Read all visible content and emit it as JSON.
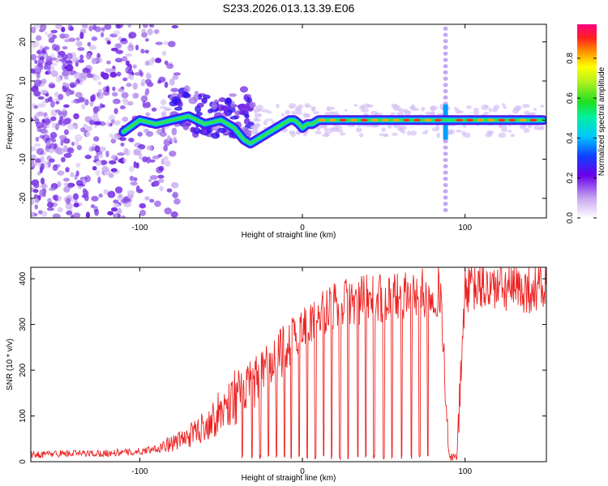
{
  "title": "S233.2026.013.13.39.E06",
  "chart_data": [
    {
      "type": "heatmap",
      "title": "S233.2026.013.13.39.E06",
      "xlabel": "Height of straight line (km)",
      "ylabel": "Frequency (Hz)",
      "xlim": [
        -167,
        150
      ],
      "ylim": [
        -25,
        24.5
      ],
      "xticks": [
        -100,
        0,
        100
      ],
      "xtick_labels": [
        "-100",
        "0",
        "100"
      ],
      "yticks": [
        20,
        10,
        0,
        -10,
        -20
      ],
      "ytick_labels": [
        "20",
        "10",
        "0",
        "-10",
        "-20"
      ],
      "trace": {
        "x": [
          -110,
          -100,
          -90,
          -80,
          -70,
          -60,
          -50,
          -42,
          -36,
          -32,
          -28,
          -24,
          -20,
          -16,
          -12,
          -8,
          -5,
          -2,
          0,
          3,
          6,
          10,
          20,
          40,
          60,
          80,
          90,
          95,
          100,
          120,
          148
        ],
        "y": [
          -3,
          0,
          -1,
          0,
          1,
          -1,
          0,
          -2,
          -5,
          -6,
          -5,
          -4,
          -3,
          -2,
          -1,
          0,
          0,
          -1,
          -2,
          -1,
          -1,
          0,
          0,
          0,
          0,
          0,
          0,
          0,
          0,
          0,
          0
        ]
      },
      "spike_x": 88,
      "colorbar": {
        "label": "Normalized spectral amplitude",
        "ticks": [
          0.0,
          0.2,
          0.4,
          0.6,
          0.8
        ],
        "tick_labels": [
          "0.0",
          "0.2",
          "0.4",
          "0.6",
          "0.8"
        ],
        "range": [
          0,
          0.97
        ]
      }
    },
    {
      "type": "line",
      "xlabel": "Height of straight line (km)",
      "ylabel": "SNR (10 * v/v)",
      "xlim": [
        -167,
        150
      ],
      "ylim": [
        0,
        425
      ],
      "xticks": [
        -100,
        0,
        100
      ],
      "xtick_labels": [
        "-100",
        "0",
        "100"
      ],
      "yticks": [
        0,
        100,
        200,
        300,
        400
      ],
      "ytick_labels": [
        "0",
        "100",
        "200",
        "300",
        "400"
      ],
      "series": [
        {
          "name": "SNR",
          "color": "#ee2222",
          "x": [
            -167,
            -150,
            -130,
            -110,
            -100,
            -90,
            -80,
            -70,
            -60,
            -50,
            -40,
            -30,
            -20,
            -10,
            0,
            10,
            20,
            30,
            40,
            50,
            60,
            70,
            80,
            85,
            90,
            93,
            95,
            100,
            110,
            120,
            130,
            140,
            150
          ],
          "values": [
            15,
            18,
            18,
            20,
            22,
            30,
            40,
            55,
            80,
            110,
            150,
            170,
            210,
            250,
            290,
            320,
            340,
            350,
            355,
            360,
            365,
            368,
            370,
            372,
            10,
            10,
            10,
            380,
            380,
            382,
            375,
            378,
            380
          ]
        }
      ],
      "dropouts_x": [
        -37,
        -31,
        -26,
        -21,
        -16,
        -11,
        -7,
        -2,
        3,
        8,
        13,
        18,
        23,
        28,
        34,
        39,
        44,
        50,
        55,
        61,
        67,
        72,
        77
      ]
    }
  ]
}
